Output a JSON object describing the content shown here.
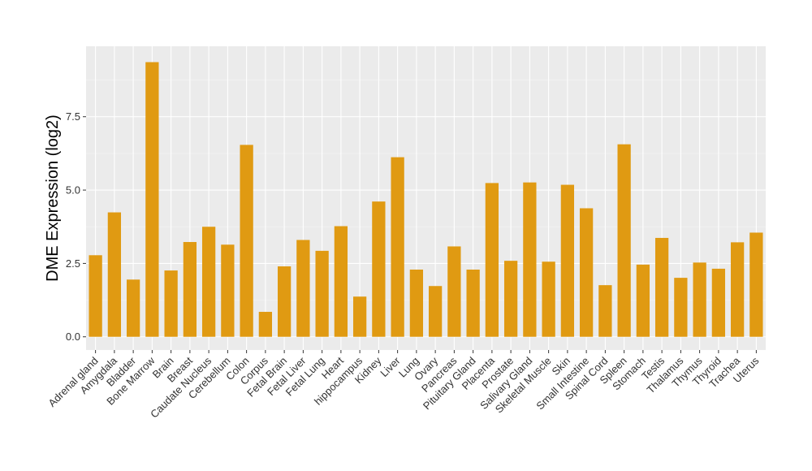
{
  "chart_data": {
    "type": "bar",
    "title": "",
    "xlabel": "",
    "ylabel": "DME Expression (log2)",
    "ylim": [
      -0.45,
      9.9
    ],
    "yticks": [
      0.0,
      2.5,
      5.0,
      7.5
    ],
    "ytick_labels": [
      "0.0",
      "2.5",
      "5.0",
      "7.5"
    ],
    "grid": true,
    "bar_color": "#E09A12",
    "panel_color": "#EBEBEB",
    "categories": [
      "Adrenal gland",
      "Amygdala",
      "Bladder",
      "Bone Marrow",
      "Brain",
      "Breast",
      "Caudate Nucleus",
      "Cerebellum",
      "Colon",
      "Corpus",
      "Fetal Brain",
      "Fetal Liver",
      "Fetal Lung",
      "Heart",
      "hippocampus",
      "Kidney",
      "Liver",
      "Lung",
      "Ovary",
      "Pancreas",
      "Pituitary Gland",
      "Placenta",
      "Prostate",
      "Salivary Gland",
      "Skeletal Muscle",
      "Skin",
      "Small Intestine",
      "Spinal Cord",
      "Spleen",
      "Stomach",
      "Testis",
      "Thalamus",
      "Thymus",
      "Thyroid",
      "Trachea",
      "Uterus"
    ],
    "values": [
      2.78,
      4.24,
      1.95,
      9.36,
      2.26,
      3.23,
      3.75,
      3.14,
      6.54,
      0.85,
      2.4,
      3.3,
      2.93,
      3.77,
      1.37,
      4.61,
      6.12,
      2.29,
      1.73,
      3.08,
      2.29,
      5.24,
      2.59,
      5.26,
      2.56,
      5.18,
      4.38,
      1.76,
      6.56,
      2.46,
      3.37,
      2.01,
      2.53,
      2.32,
      3.22,
      3.55
    ]
  }
}
